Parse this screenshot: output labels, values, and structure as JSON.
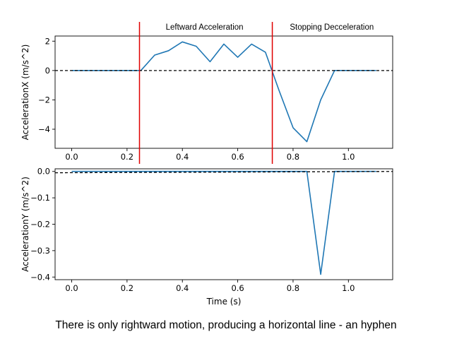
{
  "chart_data": [
    {
      "type": "line",
      "ylabel": "AccelerationX (m/s^2)",
      "xlabel": "",
      "xlim": [
        -0.06,
        1.16
      ],
      "ylim": [
        -5.3,
        2.35
      ],
      "xticks": [
        0.0,
        0.2,
        0.4,
        0.6,
        0.8,
        1.0
      ],
      "xtick_labels": [
        "0.0",
        "0.2",
        "0.4",
        "0.6",
        "0.8",
        "1.0"
      ],
      "yticks": [
        2,
        0,
        -2,
        -4
      ],
      "ytick_labels": [
        "2",
        "0",
        "−2",
        "−4"
      ],
      "series": [
        {
          "color": "#1f77b4",
          "x": [
            0.0,
            0.05,
            0.1,
            0.15,
            0.2,
            0.25,
            0.3,
            0.35,
            0.4,
            0.45,
            0.5,
            0.55,
            0.6,
            0.65,
            0.7,
            0.75,
            0.8,
            0.85,
            0.9,
            0.95,
            1.0,
            1.05,
            1.1
          ],
          "y": [
            0,
            0,
            0,
            0,
            0,
            0,
            1.05,
            1.35,
            1.95,
            1.65,
            0.6,
            1.8,
            0.9,
            1.8,
            1.25,
            -1.4,
            -3.9,
            -4.85,
            -2.0,
            0,
            0,
            0,
            0
          ]
        }
      ],
      "reference_line": {
        "y": 0,
        "style": "dashed",
        "color": "#000000"
      },
      "vertical_lines": [
        {
          "x": 0.245,
          "color": "#e00000"
        },
        {
          "x": 0.725,
          "color": "#e00000"
        }
      ],
      "annotations": [
        {
          "text": "Leftward Acceleration",
          "x": 0.48
        },
        {
          "text": "Stopping Decceleration",
          "x": 0.94
        }
      ]
    },
    {
      "type": "line",
      "ylabel": "AccelerationY (m/s^2)",
      "xlabel": "Time (s)",
      "xlim": [
        -0.06,
        1.16
      ],
      "ylim": [
        -0.41,
        0.01
      ],
      "xticks": [
        0.0,
        0.2,
        0.4,
        0.6,
        0.8,
        1.0
      ],
      "xtick_labels": [
        "0.0",
        "0.2",
        "0.4",
        "0.6",
        "0.8",
        "1.0"
      ],
      "yticks": [
        0.0,
        -0.1,
        -0.2,
        -0.3,
        -0.4
      ],
      "ytick_labels": [
        "0.0",
        "−0.1",
        "−0.2",
        "−0.3",
        "−0.4"
      ],
      "series": [
        {
          "color": "#1f77b4",
          "x": [
            0.0,
            0.05,
            0.1,
            0.15,
            0.2,
            0.25,
            0.3,
            0.35,
            0.4,
            0.45,
            0.5,
            0.55,
            0.6,
            0.65,
            0.7,
            0.75,
            0.8,
            0.85,
            0.9,
            0.95,
            1.0,
            1.05,
            1.1
          ],
          "y": [
            0,
            0,
            0,
            0,
            0,
            0,
            0,
            0,
            0,
            0,
            0,
            0,
            0,
            0,
            0,
            0,
            0,
            0,
            -0.39,
            0,
            0,
            0,
            0
          ]
        }
      ],
      "reference_line": {
        "y_start": -0.005,
        "y_end": 0.0,
        "style": "dashed",
        "color": "#000000"
      }
    }
  ],
  "caption": "There is only rightward motion, producing a horizontal line - an hyphen"
}
